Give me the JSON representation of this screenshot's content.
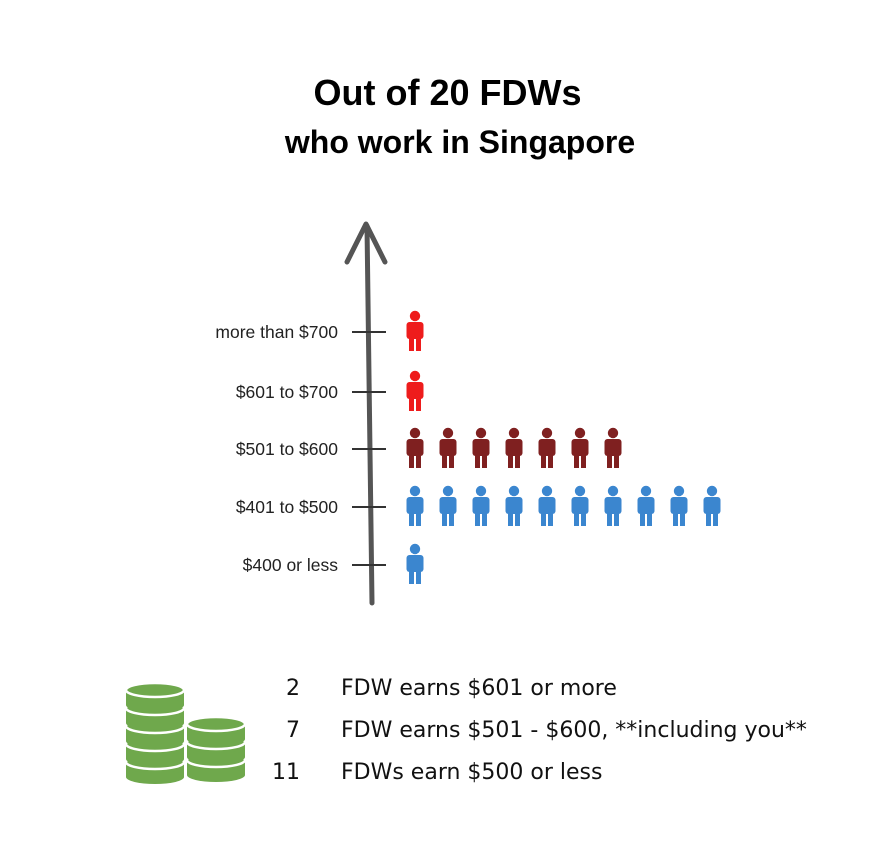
{
  "title": "Out of 20 FDWs",
  "subtitle": "who work in Singapore",
  "chart_data": {
    "type": "pictograph",
    "unit": "FDW",
    "categories": [
      "more than $700",
      "$601 to $700",
      "$501 to $600",
      "$401 to $500",
      "$400 or less"
    ],
    "values": [
      1,
      1,
      7,
      10,
      1
    ],
    "colors": [
      "#ee1c1c",
      "#ee1c1c",
      "#7f2020",
      "#3b86cf",
      "#3b86cf"
    ]
  },
  "summary": [
    {
      "count": "2",
      "text": "FDW earns $601 or more"
    },
    {
      "count": "7",
      "text": "FDW earns $501 - $600, **including you**"
    },
    {
      "count": "11",
      "text": "FDWs earn $500 or less"
    }
  ],
  "icons": {
    "money": "coin-stack-icon",
    "person": "person-icon"
  },
  "colors": {
    "coin": "#6fa84c",
    "axis": "#555555"
  }
}
